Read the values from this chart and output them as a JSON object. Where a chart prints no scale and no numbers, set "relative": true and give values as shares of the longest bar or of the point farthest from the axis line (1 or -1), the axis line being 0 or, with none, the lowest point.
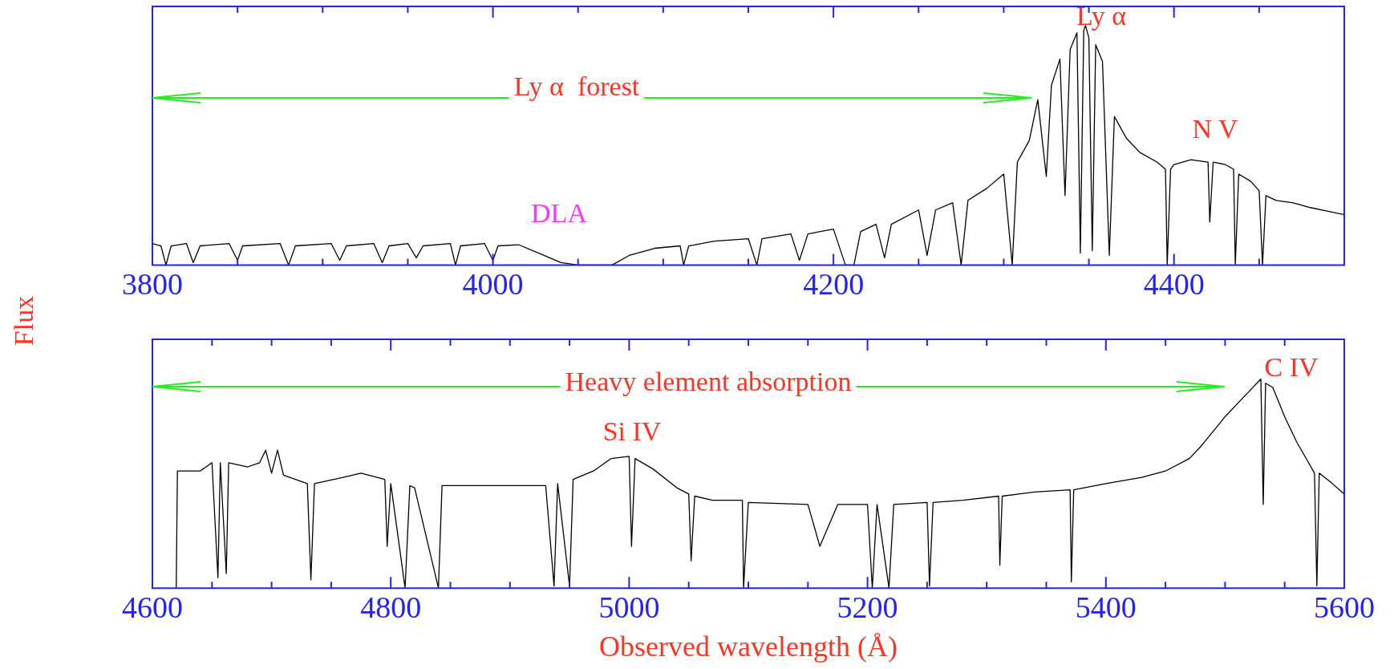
{
  "chart_data": [
    {
      "type": "line",
      "relative": true,
      "ylabel": "Flux",
      "color": "#000000",
      "xlim": [
        3800,
        4500
      ],
      "xticks": [
        3800,
        {
          "value": 3850,
          "label": null
        },
        {
          "value": 3900,
          "label": null
        },
        {
          "value": 3950,
          "label": null
        },
        4000,
        {
          "value": 4050,
          "label": null
        },
        {
          "value": 4100,
          "label": null
        },
        {
          "value": 4150,
          "label": null
        },
        4200,
        {
          "value": 4250,
          "label": null
        },
        {
          "value": 4300,
          "label": null
        },
        {
          "value": 4350,
          "label": null
        },
        4400,
        {
          "value": 4450,
          "label": null
        },
        {
          "value": 4500,
          "label": null
        }
      ],
      "annotations": [
        "Ly α  forest",
        "DLA",
        "Ly α",
        "N V"
      ],
      "x": [
        3800,
        3805,
        3808,
        3811,
        3820,
        3824,
        3828,
        3845,
        3850,
        3853,
        3875,
        3880,
        3884,
        3905,
        3910,
        3914,
        3930,
        3935,
        3939,
        3950,
        3955,
        3959,
        3975,
        3978,
        3981,
        3995,
        4000,
        4003,
        4015,
        4030,
        4040,
        4050,
        4070,
        4080,
        4095,
        4110,
        4112,
        4115,
        4130,
        4150,
        4155,
        4158,
        4175,
        4180,
        4185,
        4200,
        4207,
        4212,
        4216,
        4225,
        4230,
        4234,
        4250,
        4255,
        4260,
        4270,
        4275,
        4279,
        4290,
        4300,
        4305,
        4308,
        4315,
        4320,
        4325,
        4328,
        4333,
        4336,
        4339,
        4343,
        4345,
        4347,
        4348,
        4350,
        4352,
        4354,
        4358,
        4362,
        4365,
        4372,
        4380,
        4390,
        4395,
        4396,
        4398,
        4400,
        4410,
        4420,
        4421,
        4423,
        4430,
        4435,
        4436,
        4438,
        4445,
        4450,
        4452,
        4454,
        4460,
        4470,
        4480,
        4490,
        4500
      ],
      "values": [
        0.09,
        0.08,
        0,
        0.08,
        0.09,
        0.01,
        0.08,
        0.09,
        0.02,
        0.08,
        0.09,
        0,
        0.08,
        0.09,
        0.02,
        0.08,
        0.09,
        0.01,
        0.08,
        0.09,
        0.03,
        0.08,
        0.09,
        0,
        0.08,
        0.09,
        0.02,
        0.08,
        0.085,
        0.04,
        0.01,
        0,
        0,
        0.04,
        0.07,
        0.08,
        0,
        0.08,
        0.1,
        0.11,
        0,
        0.11,
        0.13,
        0.02,
        0.13,
        0.15,
        0,
        0,
        0.14,
        0.17,
        0.03,
        0.17,
        0.23,
        0.04,
        0.23,
        0.26,
        0,
        0.27,
        0.32,
        0.38,
        0,
        0.43,
        0.52,
        0.69,
        0.37,
        0.75,
        0.86,
        0.29,
        0.9,
        0.97,
        0.05,
        0.98,
        1,
        0.95,
        0.06,
        0.92,
        0.85,
        0.04,
        0.62,
        0.53,
        0.47,
        0.43,
        0.4,
        0,
        0.4,
        0.42,
        0.44,
        0.43,
        0.18,
        0.43,
        0.42,
        0.4,
        0,
        0.38,
        0.35,
        0.31,
        0,
        0.29,
        0.27,
        0.26,
        0.24,
        0.225,
        0.21
      ]
    },
    {
      "type": "line",
      "relative": true,
      "xlabel": "Observed wavelength (Å)",
      "color": "#000000",
      "xlim": [
        4600,
        5600
      ],
      "xticks": [
        4600,
        {
          "value": 4650,
          "label": null
        },
        {
          "value": 4700,
          "label": null
        },
        {
          "value": 4750,
          "label": null
        },
        4800,
        {
          "value": 4850,
          "label": null
        },
        {
          "value": 4900,
          "label": null
        },
        {
          "value": 4950,
          "label": null
        },
        5000,
        {
          "value": 5050,
          "label": null
        },
        {
          "value": 5100,
          "label": null
        },
        {
          "value": 5150,
          "label": null
        },
        5200,
        {
          "value": 5250,
          "label": null
        },
        {
          "value": 5300,
          "label": null
        },
        {
          "value": 5350,
          "label": null
        },
        5400,
        {
          "value": 5450,
          "label": null
        },
        {
          "value": 5500,
          "label": null
        },
        {
          "value": 5550,
          "label": null
        },
        5600
      ],
      "annotations": [
        "Heavy element absorption",
        "Si IV",
        "C IV"
      ],
      "x": [
        4620,
        4621,
        4640,
        4645,
        4650,
        4655,
        4657,
        4662,
        4664,
        4680,
        4690,
        4695,
        4700,
        4705,
        4710,
        4730,
        4733,
        4736,
        4760,
        4775,
        4795,
        4797,
        4800,
        4812,
        4816,
        4820,
        4840,
        4843,
        4870,
        4900,
        4930,
        4937,
        4940,
        4950,
        4953,
        4970,
        4985,
        5000,
        5002,
        5005,
        5020,
        5040,
        5050,
        5052,
        5055,
        5070,
        5095,
        5096,
        5100,
        5150,
        5160,
        5175,
        5200,
        5204,
        5208,
        5218,
        5222,
        5250,
        5252,
        5255,
        5280,
        5310,
        5311,
        5313,
        5340,
        5370,
        5371,
        5373,
        5400,
        5430,
        5450,
        5470,
        5480,
        5500,
        5520,
        5530,
        5532,
        5534,
        5540,
        5550,
        5560,
        5570,
        5575,
        5577,
        5579,
        5590,
        5600
      ],
      "values": [
        0,
        0.56,
        0.56,
        0.58,
        0.6,
        0.05,
        0.6,
        0.07,
        0.6,
        0.58,
        0.6,
        0.66,
        0.55,
        0.66,
        0.54,
        0.5,
        0.04,
        0.5,
        0.53,
        0.55,
        0.52,
        0.2,
        0.5,
        0,
        0.49,
        0.48,
        0,
        0.49,
        0.49,
        0.49,
        0.49,
        0.01,
        0.5,
        0.01,
        0.52,
        0.56,
        0.62,
        0.63,
        0.2,
        0.62,
        0.57,
        0.48,
        0.45,
        0.13,
        0.44,
        0.42,
        0.42,
        0,
        0.41,
        0.4,
        0.2,
        0.4,
        0.4,
        0,
        0.4,
        0,
        0.4,
        0.41,
        0.01,
        0.41,
        0.42,
        0.44,
        0.11,
        0.44,
        0.46,
        0.47,
        0.03,
        0.47,
        0.5,
        0.53,
        0.56,
        0.62,
        0.68,
        0.82,
        0.94,
        1,
        0.4,
        0.98,
        0.96,
        0.82,
        0.7,
        0.6,
        0.55,
        0.01,
        0.55,
        0.5,
        0.45
      ]
    }
  ]
}
